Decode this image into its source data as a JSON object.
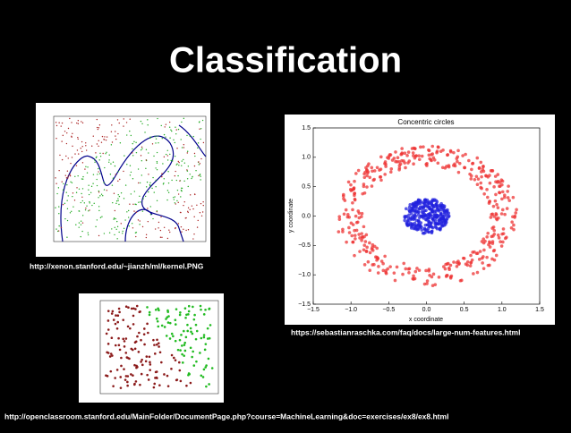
{
  "slide": {
    "title": "Classification",
    "images": [
      {
        "caption": "http://xenon.stanford.edu/~jianzh/ml/kernel.PNG"
      },
      {
        "caption": "https://sebastianraschka.com/faq/docs/large-num-features.html",
        "chart": {
          "title": "Concentric circles",
          "x_label": "x coordinate",
          "y_label": "y coordinate",
          "xlim": [
            -1.5,
            1.5
          ],
          "ylim": [
            -1.5,
            1.5
          ],
          "xticks": [
            {
              "value": -1.5,
              "label": "−1.5"
            },
            {
              "value": -1,
              "label": "−1.0"
            },
            {
              "value": -0.5,
              "label": "−0.5"
            },
            {
              "value": 0,
              "label": "0.0"
            },
            {
              "value": 0.5,
              "label": "0.5"
            },
            {
              "value": 1,
              "label": "1.0"
            },
            {
              "value": 1.5,
              "label": "1.5"
            }
          ],
          "yticks": [
            {
              "value": -1.5,
              "label": "−1.5"
            },
            {
              "value": -1,
              "label": "−1.0"
            },
            {
              "value": -0.5,
              "label": "−0.5"
            },
            {
              "value": 0,
              "label": "0.0"
            },
            {
              "value": 0.5,
              "label": "0.5"
            },
            {
              "value": 1,
              "label": "1.0"
            },
            {
              "value": 1.5,
              "label": "1.5"
            }
          ]
        }
      },
      {
        "caption": "http://openclassroom.stanford.edu/MainFolder/DocumentPage.php?course=MachineLearning&doc=exercises/ex8/ex8.html"
      }
    ]
  }
}
